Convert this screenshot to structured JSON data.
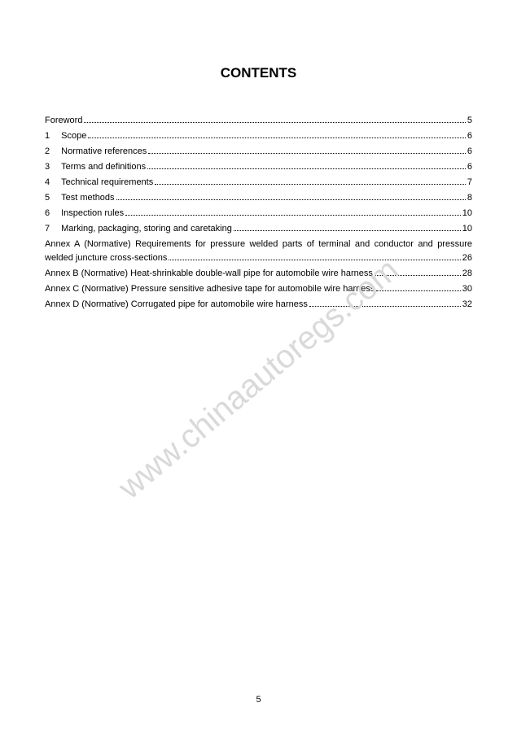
{
  "page": {
    "title": "CONTENTS",
    "page_number": "5",
    "title_fontsize": "17px",
    "body_fontsize": "11px",
    "line_height": "17px",
    "text_color": "#000000",
    "background_color": "#ffffff"
  },
  "watermark": {
    "text": "www.chinaautoregs.com",
    "color": "#d9d9d9",
    "fontsize": "40px"
  },
  "toc": {
    "numbered": [
      {
        "num": "",
        "label": "Foreword",
        "page": "5"
      },
      {
        "num": "1",
        "label": "Scope",
        "page": "6"
      },
      {
        "num": "2",
        "label": "Normative references",
        "page": "6"
      },
      {
        "num": "3",
        "label": "Terms and definitions",
        "page": "6"
      },
      {
        "num": "4",
        "label": "Technical requirements",
        "page": "7"
      },
      {
        "num": "5",
        "label": "Test methods",
        "page": "8"
      },
      {
        "num": "6",
        "label": "Inspection rules",
        "page": "10"
      },
      {
        "num": "7",
        "label": "Marking, packaging, storing and caretaking",
        "page": "10"
      }
    ],
    "annexes": [
      {
        "line1": "Annex A (Normative) Requirements for pressure welded parts of terminal and conductor and pressure",
        "line2": "welded juncture cross-sections",
        "page": "26",
        "wrap": true
      },
      {
        "line1": "Annex B (Normative) Heat-shrinkable double-wall pipe for automobile wire harness",
        "page": "28",
        "wrap": false
      },
      {
        "line1": "Annex C (Normative) Pressure sensitive adhesive tape for automobile wire harness",
        "page": "30",
        "wrap": false
      },
      {
        "line1": "Annex D (Normative) Corrugated pipe for automobile wire harness ",
        "page": "32",
        "wrap": false
      }
    ]
  }
}
